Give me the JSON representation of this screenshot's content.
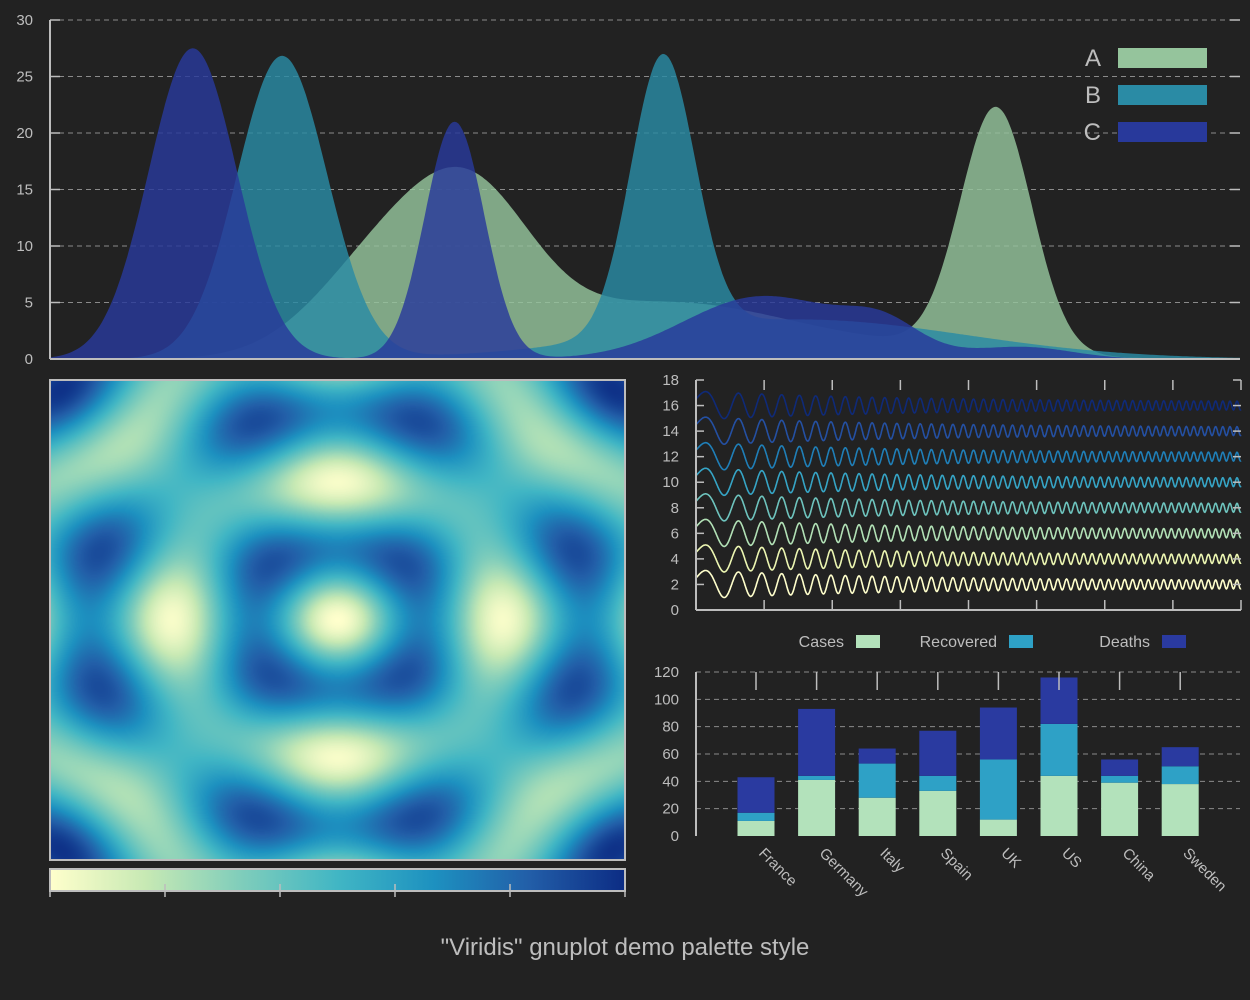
{
  "footer": "\"Viridis\" gnuplot demo palette style",
  "colors": {
    "background": "#222222",
    "axis": "#bdbdbd",
    "grid": "#8a8a8a",
    "series_A": "#95c49c",
    "series_B": "#2a8ba5",
    "series_C": "#28399b"
  },
  "chart_data": [
    {
      "id": "density",
      "type": "area",
      "ylim": [
        0,
        30
      ],
      "yticks": [
        0,
        5,
        10,
        15,
        20,
        25,
        30
      ],
      "xlim": [
        0,
        100
      ],
      "grid": true,
      "legend_position": "top-right",
      "series": [
        {
          "name": "A",
          "color": "#95c49c",
          "components": [
            [
              0.5,
              25,
              5
            ],
            [
              9,
              29,
              6
            ],
            [
              10,
              36,
              5
            ],
            [
              5,
              52,
              11
            ],
            [
              0.7,
              75,
              8
            ],
            [
              21.5,
              79.5,
              3
            ]
          ],
          "peaks": [
            {
              "x": 79.5,
              "y": 22.3
            },
            {
              "x": 30,
              "y": 13.7
            }
          ]
        },
        {
          "name": "B",
          "color": "#2a8ba5",
          "components": [
            [
              26.8,
              19.5,
              3.8
            ],
            [
              24.5,
              51.5,
              2.7
            ],
            [
              3.5,
              63,
              14
            ]
          ],
          "peaks": [
            {
              "x": 19.5,
              "y": 26.8
            },
            {
              "x": 51.5,
              "y": 24.9
            }
          ]
        },
        {
          "name": "C",
          "color": "#28399b",
          "components": [
            [
              27.5,
              12,
              3.7
            ],
            [
              21,
              34,
              2.5
            ],
            [
              3,
              58,
              6
            ],
            [
              3,
              63,
              7
            ],
            [
              2,
              70,
              3
            ],
            [
              1,
              82,
              4
            ]
          ],
          "peaks": [
            {
              "x": 12,
              "y": 27.5
            },
            {
              "x": 34,
              "y": 21.5
            }
          ]
        }
      ]
    },
    {
      "id": "heatmap",
      "type": "heatmap",
      "description_values": "cos(r) interference pattern over a square domain",
      "colorbar": [
        "#ffffcc",
        "#c7e9b4",
        "#7fcdbb",
        "#41b6c4",
        "#1d91c0",
        "#225ea8",
        "#0c2c84"
      ],
      "colorbar_ticks": 6
    },
    {
      "id": "waves",
      "type": "line",
      "ylim": [
        0,
        18
      ],
      "yticks": [
        0,
        2,
        4,
        6,
        8,
        10,
        12,
        14,
        16,
        18
      ],
      "xticks_count": 9,
      "series": [
        {
          "offset": 2,
          "color": "#ffffcc"
        },
        {
          "offset": 4,
          "color": "#ecf6b2"
        },
        {
          "offset": 6,
          "color": "#b2e1b6"
        },
        {
          "offset": 8,
          "color": "#6ec4be"
        },
        {
          "offset": 10,
          "color": "#36a5c6"
        },
        {
          "offset": 12,
          "color": "#1f7fb8"
        },
        {
          "offset": 14,
          "color": "#2450a3"
        },
        {
          "offset": 16,
          "color": "#0f2a78"
        }
      ]
    },
    {
      "id": "stacked",
      "type": "bar",
      "ylim": [
        0,
        120
      ],
      "yticks": [
        0,
        20,
        40,
        60,
        80,
        100,
        120
      ],
      "legend_position": "top",
      "categories": [
        "France",
        "Germany",
        "Italy",
        "Spain",
        "UK",
        "US",
        "China",
        "Sweden"
      ],
      "series": [
        {
          "name": "Cases",
          "color": "#b3e2bb",
          "values": [
            11,
            41,
            28,
            33,
            12,
            44,
            39,
            38
          ]
        },
        {
          "name": "Recovered",
          "color": "#2ea1c6",
          "values": [
            6,
            3,
            25,
            11,
            44,
            38,
            5,
            13
          ]
        },
        {
          "name": "Deaths",
          "color": "#2a3aa0",
          "values": [
            26,
            49,
            11,
            33,
            38,
            34,
            12,
            14
          ]
        }
      ]
    }
  ]
}
